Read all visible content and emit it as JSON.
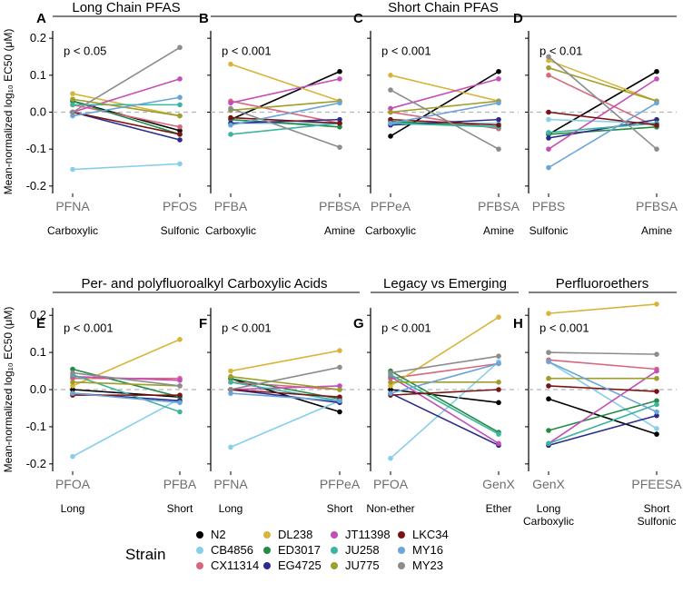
{
  "strains": [
    {
      "name": "N2",
      "color": "#000000"
    },
    {
      "name": "CB4856",
      "color": "#87ceeb"
    },
    {
      "name": "CX11314",
      "color": "#d9667f"
    },
    {
      "name": "DL238",
      "color": "#d9b43a"
    },
    {
      "name": "ED3017",
      "color": "#238b45"
    },
    {
      "name": "EG4725",
      "color": "#2b2b8c"
    },
    {
      "name": "JT11398",
      "color": "#c44db8"
    },
    {
      "name": "JU258",
      "color": "#3cb4a0"
    },
    {
      "name": "JU775",
      "color": "#9e9e2a"
    },
    {
      "name": "LKC34",
      "color": "#7a1414"
    },
    {
      "name": "MY16",
      "color": "#6aa5d8"
    },
    {
      "name": "MY23",
      "color": "#8c8c8c"
    }
  ],
  "legend": {
    "title": "Strain"
  },
  "y_axis_label": "Mean-normalized log₁₀ EC50 (μM)",
  "groups": [
    {
      "title": "Long Chain PFAS"
    },
    {
      "title": "Short Chain PFAS"
    },
    {
      "title": "Per- and polyfluoroalkyl Carboxylic Acids"
    },
    {
      "title": "Legacy vs Emerging"
    },
    {
      "title": "Perfluoroethers"
    }
  ],
  "chart_data": [
    {
      "panel": "A",
      "type": "line",
      "pvalue": "p < 0.05",
      "ylim": [
        -0.22,
        0.22
      ],
      "yticks": [
        0.2,
        0.1,
        0.0,
        -0.1,
        -0.2
      ],
      "categories": [
        "PFNA",
        "PFOS"
      ],
      "category_labels": [
        "Carboxylic",
        "Sulfonic"
      ],
      "series": [
        {
          "name": "N2",
          "values": [
            0.03,
            -0.05
          ]
        },
        {
          "name": "CB4856",
          "values": [
            -0.155,
            -0.14
          ]
        },
        {
          "name": "CX11314",
          "values": [
            0.02,
            -0.04
          ]
        },
        {
          "name": "DL238",
          "values": [
            0.05,
            -0.01
          ]
        },
        {
          "name": "ED3017",
          "values": [
            0.03,
            -0.06
          ]
        },
        {
          "name": "EG4725",
          "values": [
            0.0,
            -0.075
          ]
        },
        {
          "name": "JT11398",
          "values": [
            0.0,
            0.09
          ]
        },
        {
          "name": "JU258",
          "values": [
            0.02,
            0.02
          ]
        },
        {
          "name": "JU775",
          "values": [
            0.035,
            -0.01
          ]
        },
        {
          "name": "LKC34",
          "values": [
            0.0,
            -0.06
          ]
        },
        {
          "name": "MY16",
          "values": [
            -0.01,
            0.04
          ]
        },
        {
          "name": "MY23",
          "values": [
            0.0,
            0.175
          ]
        }
      ]
    },
    {
      "panel": "B",
      "type": "line",
      "pvalue": "p < 0.001",
      "ylim": [
        -0.22,
        0.22
      ],
      "categories": [
        "PFBA",
        "PFBSA"
      ],
      "category_labels": [
        "Carboxylic",
        "Amine"
      ],
      "series": [
        {
          "name": "N2",
          "values": [
            -0.02,
            0.11
          ]
        },
        {
          "name": "CB4856",
          "values": [
            -0.03,
            -0.03
          ]
        },
        {
          "name": "CX11314",
          "values": [
            0.03,
            -0.03
          ]
        },
        {
          "name": "DL238",
          "values": [
            0.13,
            0.03
          ]
        },
        {
          "name": "ED3017",
          "values": [
            -0.02,
            -0.04
          ]
        },
        {
          "name": "EG4725",
          "values": [
            -0.03,
            -0.02
          ]
        },
        {
          "name": "JT11398",
          "values": [
            0.025,
            0.09
          ]
        },
        {
          "name": "JU258",
          "values": [
            -0.06,
            -0.03
          ]
        },
        {
          "name": "JU775",
          "values": [
            0.005,
            0.03
          ]
        },
        {
          "name": "LKC34",
          "values": [
            -0.015,
            -0.03
          ]
        },
        {
          "name": "MY16",
          "values": [
            -0.035,
            0.025
          ]
        },
        {
          "name": "MY23",
          "values": [
            0.01,
            -0.095
          ]
        }
      ]
    },
    {
      "panel": "C",
      "type": "line",
      "pvalue": "p < 0.001",
      "ylim": [
        -0.22,
        0.22
      ],
      "categories": [
        "PFPeA",
        "PFBSA"
      ],
      "category_labels": [
        "Carboxylic",
        "Amine"
      ],
      "series": [
        {
          "name": "N2",
          "values": [
            -0.065,
            0.11
          ]
        },
        {
          "name": "CB4856",
          "values": [
            -0.03,
            -0.03
          ]
        },
        {
          "name": "CX11314",
          "values": [
            0.0,
            -0.045
          ]
        },
        {
          "name": "DL238",
          "values": [
            0.1,
            0.03
          ]
        },
        {
          "name": "ED3017",
          "values": [
            -0.025,
            -0.04
          ]
        },
        {
          "name": "EG4725",
          "values": [
            -0.035,
            -0.02
          ]
        },
        {
          "name": "JT11398",
          "values": [
            0.01,
            0.09
          ]
        },
        {
          "name": "JU258",
          "values": [
            -0.03,
            -0.04
          ]
        },
        {
          "name": "JU775",
          "values": [
            0.0,
            0.03
          ]
        },
        {
          "name": "LKC34",
          "values": [
            -0.02,
            -0.035
          ]
        },
        {
          "name": "MY16",
          "values": [
            -0.03,
            0.025
          ]
        },
        {
          "name": "MY23",
          "values": [
            0.06,
            -0.1
          ]
        }
      ]
    },
    {
      "panel": "D",
      "type": "line",
      "pvalue": "p < 0.01",
      "ylim": [
        -0.22,
        0.22
      ],
      "categories": [
        "PFBS",
        "PFBSA"
      ],
      "category_labels": [
        "Sulfonic",
        "Amine"
      ],
      "series": [
        {
          "name": "N2",
          "values": [
            -0.06,
            0.11
          ]
        },
        {
          "name": "CB4856",
          "values": [
            -0.02,
            -0.03
          ]
        },
        {
          "name": "CX11314",
          "values": [
            0.1,
            -0.04
          ]
        },
        {
          "name": "DL238",
          "values": [
            0.14,
            0.03
          ]
        },
        {
          "name": "ED3017",
          "values": [
            -0.06,
            -0.04
          ]
        },
        {
          "name": "EG4725",
          "values": [
            -0.07,
            -0.02
          ]
        },
        {
          "name": "JT11398",
          "values": [
            -0.1,
            0.09
          ]
        },
        {
          "name": "JU258",
          "values": [
            -0.055,
            -0.03
          ]
        },
        {
          "name": "JU775",
          "values": [
            0.12,
            0.03
          ]
        },
        {
          "name": "LKC34",
          "values": [
            0.0,
            -0.035
          ]
        },
        {
          "name": "MY16",
          "values": [
            -0.15,
            0.025
          ]
        },
        {
          "name": "MY23",
          "values": [
            0.15,
            -0.1
          ]
        }
      ]
    },
    {
      "panel": "E",
      "type": "line",
      "pvalue": "p < 0.001",
      "ylim": [
        -0.22,
        0.22
      ],
      "yticks": [
        0.2,
        0.1,
        0.0,
        -0.1,
        -0.2
      ],
      "categories": [
        "PFOA",
        "PFBA"
      ],
      "category_labels": [
        "Long",
        "Short"
      ],
      "series": [
        {
          "name": "N2",
          "values": [
            0.0,
            -0.02
          ]
        },
        {
          "name": "CB4856",
          "values": [
            -0.18,
            -0.025
          ]
        },
        {
          "name": "CX11314",
          "values": [
            0.03,
            0.03
          ]
        },
        {
          "name": "DL238",
          "values": [
            0.01,
            0.135
          ]
        },
        {
          "name": "ED3017",
          "values": [
            0.055,
            -0.02
          ]
        },
        {
          "name": "EG4725",
          "values": [
            -0.01,
            -0.03
          ]
        },
        {
          "name": "JT11398",
          "values": [
            0.035,
            0.025
          ]
        },
        {
          "name": "JU258",
          "values": [
            0.04,
            -0.06
          ]
        },
        {
          "name": "JU775",
          "values": [
            0.02,
            0.01
          ]
        },
        {
          "name": "LKC34",
          "values": [
            -0.015,
            -0.015
          ]
        },
        {
          "name": "MY16",
          "values": [
            -0.01,
            -0.035
          ]
        },
        {
          "name": "MY23",
          "values": [
            0.045,
            0.01
          ]
        }
      ]
    },
    {
      "panel": "F",
      "type": "line",
      "pvalue": "p < 0.001",
      "ylim": [
        -0.22,
        0.22
      ],
      "categories": [
        "PFNA",
        "PFPeA"
      ],
      "category_labels": [
        "Long",
        "Short"
      ],
      "series": [
        {
          "name": "N2",
          "values": [
            0.03,
            -0.06
          ]
        },
        {
          "name": "CB4856",
          "values": [
            -0.155,
            -0.03
          ]
        },
        {
          "name": "CX11314",
          "values": [
            0.02,
            0.0
          ]
        },
        {
          "name": "DL238",
          "values": [
            0.05,
            0.105
          ]
        },
        {
          "name": "ED3017",
          "values": [
            0.03,
            -0.025
          ]
        },
        {
          "name": "EG4725",
          "values": [
            0.0,
            -0.035
          ]
        },
        {
          "name": "JT11398",
          "values": [
            0.0,
            0.01
          ]
        },
        {
          "name": "JU258",
          "values": [
            0.02,
            -0.03
          ]
        },
        {
          "name": "JU775",
          "values": [
            0.035,
            0.0
          ]
        },
        {
          "name": "LKC34",
          "values": [
            0.0,
            -0.02
          ]
        },
        {
          "name": "MY16",
          "values": [
            -0.01,
            -0.03
          ]
        },
        {
          "name": "MY23",
          "values": [
            0.0,
            0.06
          ]
        }
      ]
    },
    {
      "panel": "G",
      "type": "line",
      "pvalue": "p < 0.001",
      "ylim": [
        -0.22,
        0.22
      ],
      "categories": [
        "PFOA",
        "GenX"
      ],
      "category_labels": [
        "Non-ether",
        "Ether"
      ],
      "series": [
        {
          "name": "N2",
          "values": [
            0.0,
            -0.035
          ]
        },
        {
          "name": "CB4856",
          "values": [
            -0.185,
            0.075
          ]
        },
        {
          "name": "CX11314",
          "values": [
            0.03,
            0.07
          ]
        },
        {
          "name": "DL238",
          "values": [
            0.01,
            0.195
          ]
        },
        {
          "name": "ED3017",
          "values": [
            0.05,
            -0.115
          ]
        },
        {
          "name": "EG4725",
          "values": [
            -0.01,
            -0.15
          ]
        },
        {
          "name": "JT11398",
          "values": [
            0.035,
            -0.145
          ]
        },
        {
          "name": "JU258",
          "values": [
            0.04,
            -0.12
          ]
        },
        {
          "name": "JU775",
          "values": [
            0.02,
            0.02
          ]
        },
        {
          "name": "LKC34",
          "values": [
            -0.015,
            0.0
          ]
        },
        {
          "name": "MY16",
          "values": [
            -0.01,
            0.07
          ]
        },
        {
          "name": "MY23",
          "values": [
            0.045,
            0.09
          ]
        }
      ]
    },
    {
      "panel": "H",
      "type": "line",
      "pvalue": "p < 0.001",
      "ylim": [
        -0.22,
        0.22
      ],
      "categories": [
        "GenX",
        "PFEESA"
      ],
      "category_labels": [
        "Long\nCarboxylic",
        "Short\nSulfonic"
      ],
      "series": [
        {
          "name": "N2",
          "values": [
            -0.025,
            -0.12
          ]
        },
        {
          "name": "CB4856",
          "values": [
            0.075,
            -0.105
          ]
        },
        {
          "name": "CX11314",
          "values": [
            0.08,
            0.055
          ]
        },
        {
          "name": "DL238",
          "values": [
            0.205,
            0.23
          ]
        },
        {
          "name": "ED3017",
          "values": [
            -0.11,
            -0.03
          ]
        },
        {
          "name": "EG4725",
          "values": [
            -0.15,
            -0.07
          ]
        },
        {
          "name": "JT11398",
          "values": [
            -0.145,
            0.05
          ]
        },
        {
          "name": "JU258",
          "values": [
            -0.145,
            -0.04
          ]
        },
        {
          "name": "JU775",
          "values": [
            0.03,
            0.03
          ]
        },
        {
          "name": "LKC34",
          "values": [
            0.01,
            -0.005
          ]
        },
        {
          "name": "MY16",
          "values": [
            0.075,
            -0.06
          ]
        },
        {
          "name": "MY23",
          "values": [
            0.1,
            0.095
          ]
        }
      ]
    }
  ]
}
